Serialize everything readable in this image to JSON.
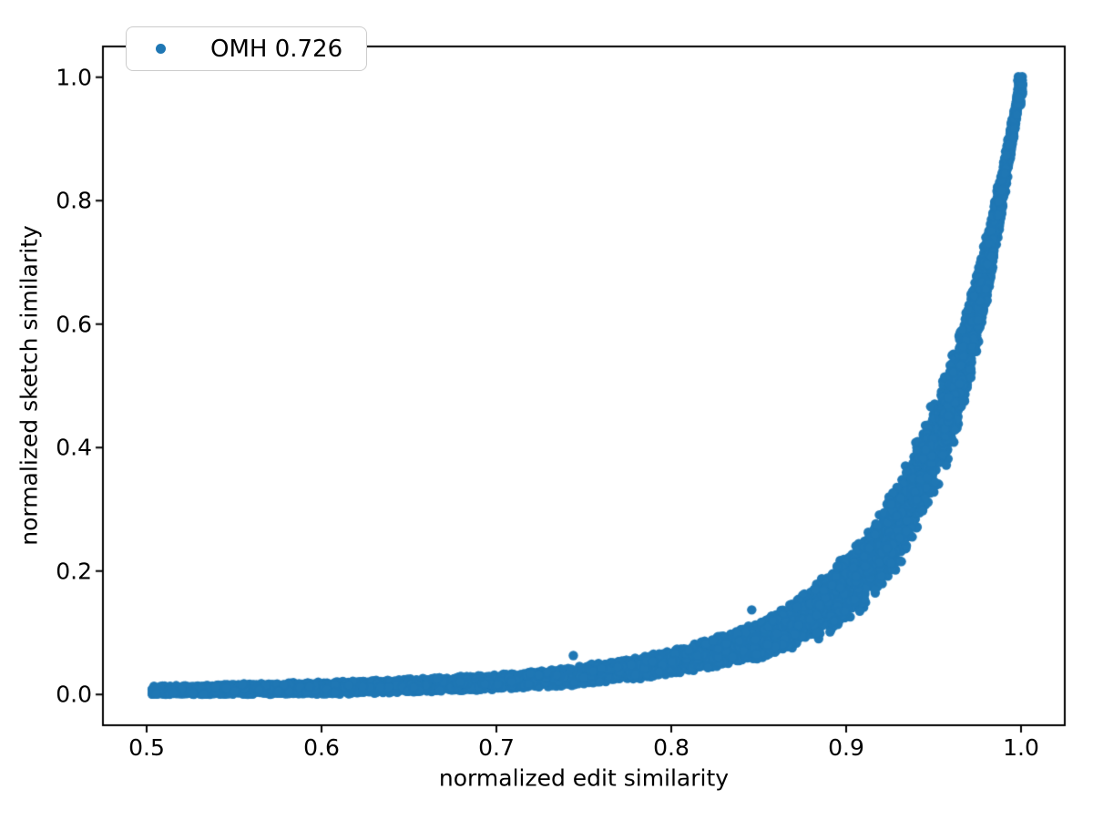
{
  "figure": {
    "background": "#ffffff",
    "accent_color": "#1f77b4",
    "spine_color": "#000000"
  },
  "chart_data": {
    "type": "scatter",
    "title": "",
    "xlabel": "normalized edit similarity",
    "ylabel": "normalized sketch similarity",
    "xlim": [
      0.475,
      1.025
    ],
    "ylim": [
      -0.05,
      1.05
    ],
    "grid": false,
    "xticks": [
      0.5,
      0.6,
      0.7,
      0.8,
      0.9,
      1.0
    ],
    "xticklabels": [
      "0.5",
      "0.6",
      "0.7",
      "0.8",
      "0.9",
      "1.0"
    ],
    "yticks": [
      0.0,
      0.2,
      0.4,
      0.6,
      0.8,
      1.0
    ],
    "yticklabels": [
      "0.0",
      "0.2",
      "0.4",
      "0.6",
      "0.8",
      "1.0"
    ],
    "legend": {
      "position": "upper left",
      "entries": [
        {
          "label": "OMH 0.726",
          "marker_color": "#1f77b4",
          "marker": "dot"
        }
      ]
    },
    "series": [
      {
        "name": "OMH 0.726",
        "marker_color": "#1f77b4",
        "x_range": [
          0.503,
          1.0
        ],
        "description": "dense monotonic band: nearly flat near y=0 for x in [0.5,0.78], then rising steeply to (1.0, 1.0)",
        "band_profile": {
          "x": [
            0.503,
            0.55,
            0.6,
            0.65,
            0.7,
            0.74,
            0.78,
            0.8,
            0.82,
            0.85,
            0.87,
            0.89,
            0.91,
            0.93,
            0.95,
            0.96,
            0.97,
            0.98,
            0.985,
            0.99,
            0.995,
            1.0
          ],
          "y_center": [
            0.006,
            0.008,
            0.01,
            0.014,
            0.02,
            0.028,
            0.042,
            0.052,
            0.065,
            0.088,
            0.112,
            0.148,
            0.2,
            0.275,
            0.4,
            0.47,
            0.565,
            0.685,
            0.755,
            0.83,
            0.91,
            0.992
          ],
          "y_halfwidth": [
            0.007,
            0.008,
            0.009,
            0.01,
            0.011,
            0.013,
            0.016,
            0.018,
            0.021,
            0.027,
            0.034,
            0.045,
            0.055,
            0.062,
            0.072,
            0.07,
            0.063,
            0.052,
            0.044,
            0.034,
            0.022,
            0.009
          ]
        },
        "peak_point": [
          1.0,
          1.0
        ],
        "outliers": [
          [
            0.744,
            0.063
          ],
          [
            0.846,
            0.137
          ]
        ]
      }
    ]
  }
}
